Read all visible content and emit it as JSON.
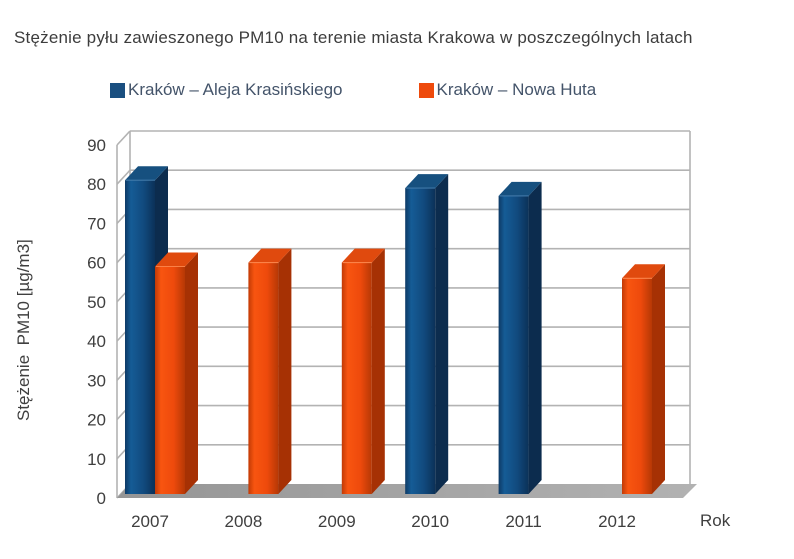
{
  "title": "Stężenie pyłu zawieszonego PM10 na terenie miasta Krakowa w poszczególnych latach",
  "chart_data": {
    "type": "bar",
    "style": "3d-column",
    "title": "Stężenie pyłu zawieszonego PM10 na terenie miasta Krakowa w poszczególnych latach",
    "categories": [
      "2007",
      "2008",
      "2009",
      "2010",
      "2011",
      "2012"
    ],
    "series": [
      {
        "name": "Kraków – Aleja Krasińskiego",
        "color": "#1a4f80",
        "values": [
          80,
          null,
          null,
          78,
          76,
          null
        ],
        "shades": {
          "front": [
            "#0d3a66",
            "#155c96",
            "#114a7e",
            "#0b3158"
          ],
          "side": "#0c2c4e",
          "top": "#16507f",
          "highlight": "#447eae"
        }
      },
      {
        "name": "Kraków – Nowa Huta",
        "color": "#ee4a0c",
        "values": [
          58,
          59,
          59,
          null,
          null,
          55
        ],
        "shades": {
          "front": [
            "#c23a05",
            "#f85510",
            "#ee4a0c",
            "#b63805"
          ],
          "side": "#a63104",
          "top": "#e04a0e",
          "highlight": "#ff8a50"
        }
      }
    ],
    "xlabel": "Rok",
    "ylabel": "Stężenie  PM10 [µg/m3]",
    "ylim": [
      0,
      90
    ],
    "ytick_step": 10,
    "grid": true,
    "legend_position": "top"
  },
  "palette": {
    "grid": "#b3b3b3",
    "wall": "#b3b3b3",
    "floor_dark": "#959595",
    "floor_light": "#b2b2b2",
    "axis_text": "#3f3f3f",
    "title_text": "#3d3d3d",
    "legend_text": "#44546a",
    "background": "#ffffff"
  }
}
